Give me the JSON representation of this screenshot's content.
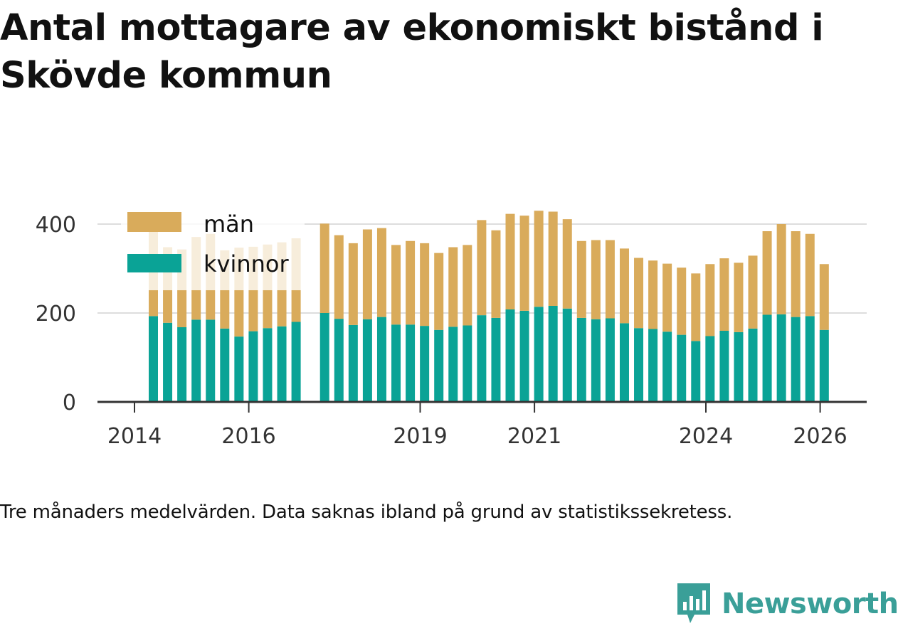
{
  "chart_data": {
    "type": "bar",
    "stacked": true,
    "title": "Antal mottagare av ekonomiskt bistånd i Skövde kommun",
    "caption": "Tre månaders medelvärden. Data saknas ibland på grund av statistikssekretess.",
    "ylim": [
      0,
      430
    ],
    "y_ticks": [
      0,
      200,
      400
    ],
    "x_ticks": [
      "2014",
      "2016",
      "2019",
      "2021",
      "2024",
      "2026"
    ],
    "legend": {
      "position": "top-left",
      "items": [
        "män",
        "kvinnor"
      ]
    },
    "colors": {
      "kvinnor": "#0aa396",
      "män": "#d9ab5b",
      "grid": "#dddddd",
      "axis": "#333333"
    },
    "series": [
      {
        "name": "kvinnor",
        "values": [
          193,
          178,
          168,
          185,
          185,
          165,
          147,
          159,
          166,
          170,
          180,
          null,
          200,
          187,
          173,
          186,
          191,
          174,
          174,
          171,
          162,
          169,
          172,
          195,
          189,
          208,
          205,
          214,
          216,
          210,
          189,
          186,
          188,
          177,
          166,
          164,
          158,
          151,
          137,
          148,
          160,
          157,
          165,
          196,
          197,
          191,
          193,
          162
        ]
      },
      {
        "name": "män",
        "values": [
          190,
          170,
          175,
          186,
          193,
          176,
          200,
          190,
          188,
          189,
          188,
          null,
          201,
          188,
          184,
          202,
          200,
          179,
          188,
          186,
          173,
          179,
          181,
          214,
          197,
          215,
          214,
          216,
          212,
          201,
          173,
          178,
          176,
          168,
          158,
          154,
          153,
          151,
          152,
          162,
          163,
          156,
          164,
          188,
          203,
          193,
          185,
          148
        ]
      }
    ],
    "periods": [
      "2014-03",
      "2014-06",
      "2014-09",
      "2014-12",
      "2015-03",
      "2015-06",
      "2015-09",
      "2015-12",
      "2016-03",
      "2016-06",
      "2016-09",
      "2016-12",
      "2017-03",
      "2017-06",
      "2017-09",
      "2017-12",
      "2018-03",
      "2018-06",
      "2018-09",
      "2018-12",
      "2019-03",
      "2019-06",
      "2019-09",
      "2019-12",
      "2020-03",
      "2020-06",
      "2020-09",
      "2020-12",
      "2021-03",
      "2021-06",
      "2021-09",
      "2021-12",
      "2022-03",
      "2022-06",
      "2022-09",
      "2022-12",
      "2023-03",
      "2023-06",
      "2023-09",
      "2023-12",
      "2024-03",
      "2024-06",
      "2024-09",
      "2024-12",
      "2025-03",
      "2025-06",
      "2025-09",
      "2025-12"
    ]
  },
  "brand": {
    "name": "Newsworthy",
    "icon": "bar-chart-speech-bubble-icon"
  }
}
